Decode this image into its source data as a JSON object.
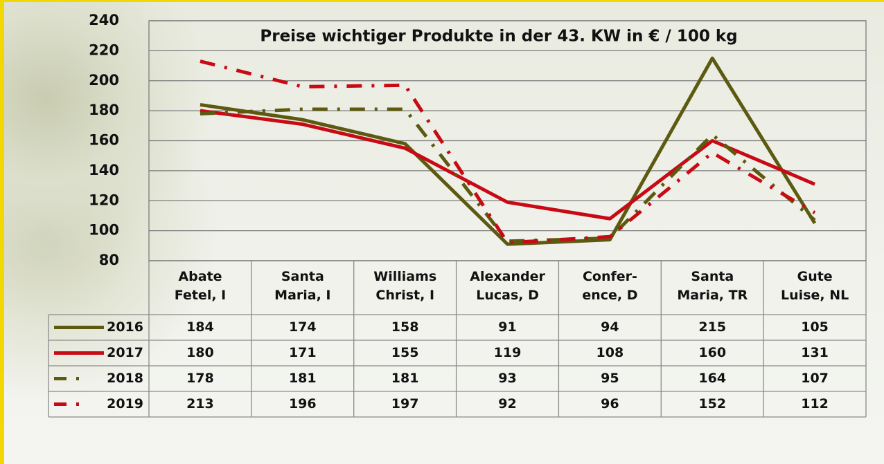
{
  "chart_data": {
    "type": "line",
    "title": "Preise wichtiger Produkte in der 43. KW in € / 100 kg",
    "categories": [
      "Abate\nFetel, I",
      "Santa\nMaria, I",
      "Williams\nChrist, I",
      "Alexander\nLucas, D",
      "Confer-\nence, D",
      "Santa\nMaria, TR",
      "Gute\nLuise, NL"
    ],
    "series": [
      {
        "name": "2016",
        "color": "#5c5a10",
        "style": "solid",
        "values": [
          184,
          174,
          158,
          91,
          94,
          215,
          105
        ]
      },
      {
        "name": "2017",
        "color": "#c80a14",
        "style": "solid",
        "values": [
          180,
          171,
          155,
          119,
          108,
          160,
          131
        ]
      },
      {
        "name": "2018",
        "color": "#5c5a10",
        "style": "dashdot",
        "values": [
          178,
          181,
          181,
          93,
          95,
          164,
          107
        ]
      },
      {
        "name": "2019",
        "color": "#c80a14",
        "style": "dashdot",
        "values": [
          213,
          196,
          197,
          92,
          96,
          152,
          112
        ]
      }
    ],
    "ylim": [
      80,
      240
    ],
    "yticks": [
      80,
      100,
      120,
      140,
      160,
      180,
      200,
      220,
      240
    ],
    "grid": true
  }
}
